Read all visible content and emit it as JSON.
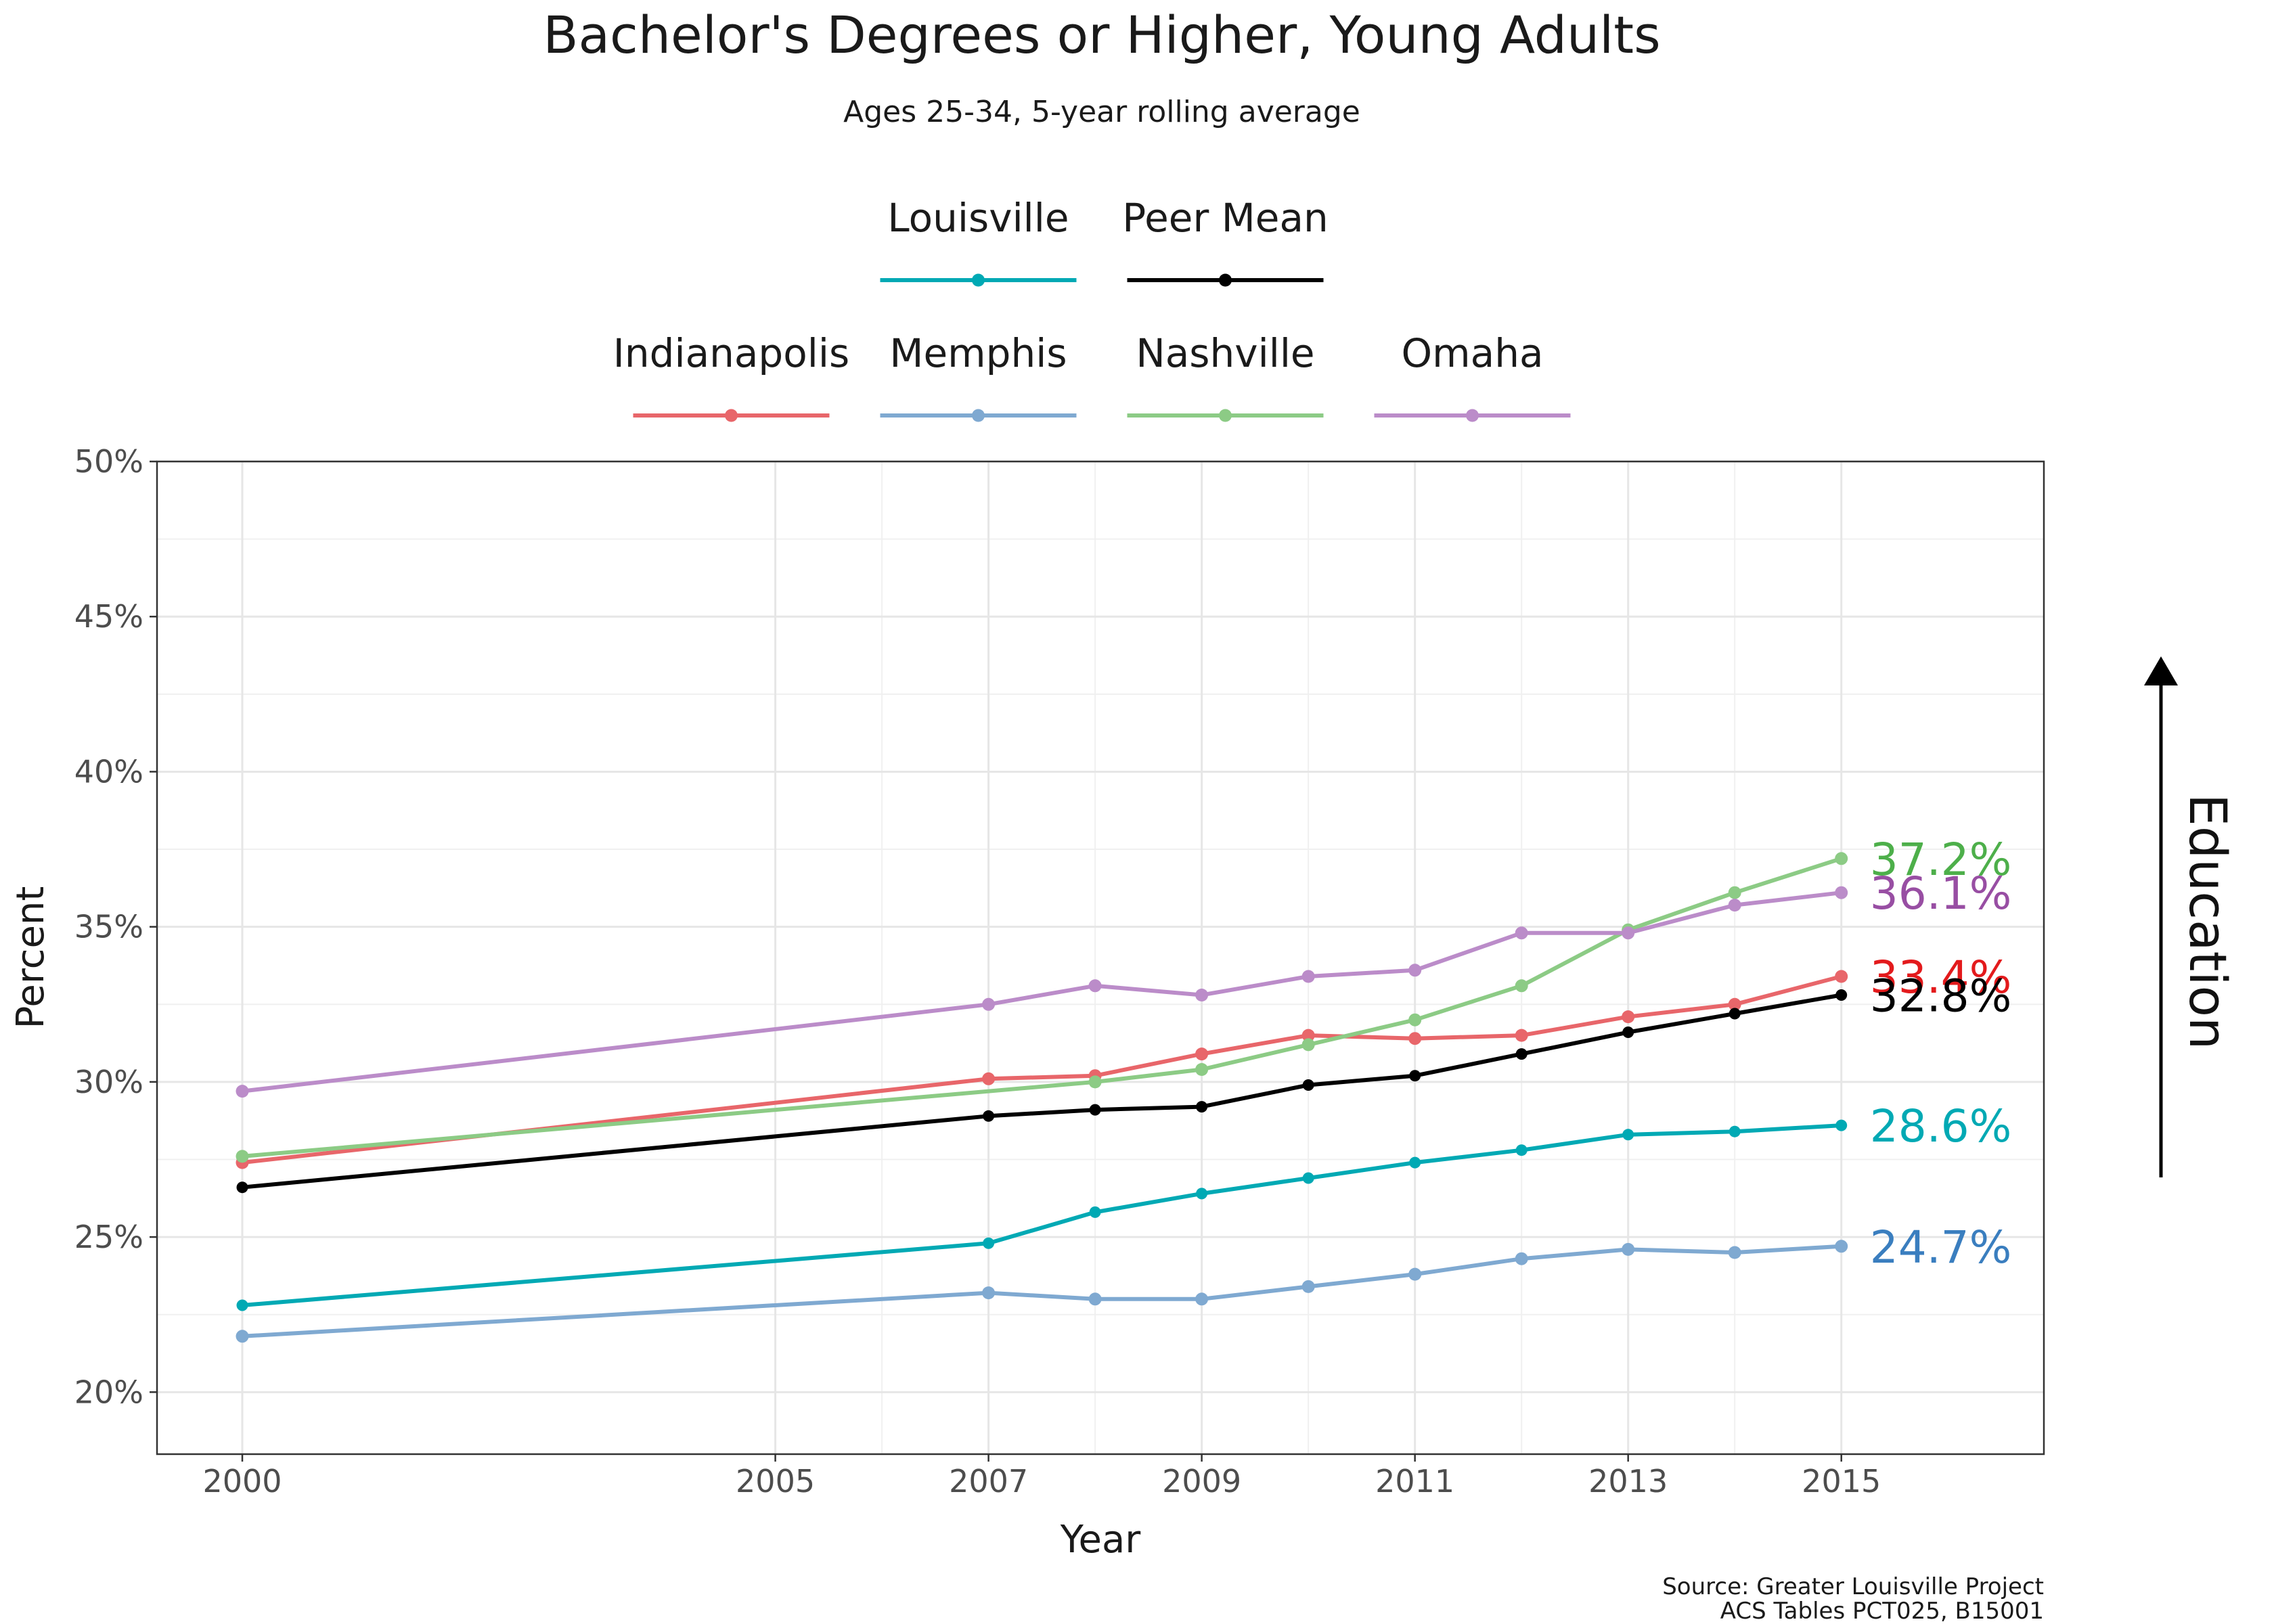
{
  "chart_data": {
    "type": "line",
    "title": "Bachelor's Degrees or Higher, Young Adults",
    "subtitle": "Ages 25-34, 5-year rolling average",
    "xlabel": "Year",
    "ylabel": "Percent",
    "xlim": [
      1999.2,
      2016.9
    ],
    "ylim": [
      18,
      50
    ],
    "x_ticks": [
      2000,
      2005,
      2007,
      2009,
      2011,
      2013,
      2015
    ],
    "x_tick_labels": [
      "2000",
      "2005",
      "2007",
      "2009",
      "2011",
      "2013",
      "2015"
    ],
    "x_minor_gridlines": [
      2006,
      2008,
      2010,
      2012,
      2014
    ],
    "y_ticks": [
      20,
      25,
      30,
      35,
      40,
      45,
      50
    ],
    "y_tick_labels": [
      "20%",
      "25%",
      "30%",
      "35%",
      "40%",
      "45%",
      "50%"
    ],
    "grid": true,
    "legend_placement": "top",
    "legend_rows": [
      [
        "Louisville",
        "Peer Mean"
      ],
      [
        "Indianapolis",
        "Memphis",
        "Nashville",
        "Omaha"
      ]
    ],
    "x": [
      2000,
      2007,
      2008,
      2009,
      2010,
      2011,
      2012,
      2013,
      2014,
      2015
    ],
    "series": [
      {
        "name": "Indianapolis",
        "color": "#e8666a",
        "values": [
          27.4,
          30.1,
          30.2,
          30.9,
          31.5,
          31.4,
          31.5,
          32.1,
          32.5,
          33.4
        ],
        "end_label": "33.4%",
        "label_color": "#e31a1c"
      },
      {
        "name": "Memphis",
        "color": "#7fa9d1",
        "values": [
          21.8,
          23.2,
          23.0,
          23.0,
          23.4,
          23.8,
          24.3,
          24.6,
          24.5,
          24.7
        ],
        "end_label": "24.7%",
        "label_color": "#3a7ebf"
      },
      {
        "name": "Nashville",
        "color": "#8ccb85",
        "values": [
          27.6,
          null,
          30.0,
          30.4,
          31.2,
          32.0,
          33.1,
          34.9,
          36.1,
          37.2
        ],
        "end_label": "37.2%",
        "label_color": "#4daf4a"
      },
      {
        "name": "Omaha",
        "color": "#bb8cc9",
        "values": [
          29.7,
          32.5,
          33.1,
          32.8,
          33.4,
          33.6,
          34.8,
          34.8,
          35.7,
          36.1
        ],
        "end_label": "36.1%",
        "label_color": "#984ea3"
      },
      {
        "name": "Peer Mean",
        "color": "#000000",
        "values": [
          26.6,
          28.9,
          29.1,
          29.2,
          29.9,
          30.2,
          30.9,
          31.6,
          32.2,
          32.8
        ],
        "end_label": "32.8%",
        "label_color": "#000000"
      },
      {
        "name": "Louisville",
        "color": "#00a9b4",
        "values": [
          22.8,
          24.8,
          25.8,
          26.4,
          26.9,
          27.4,
          27.8,
          28.3,
          28.4,
          28.6
        ],
        "end_label": "28.6%",
        "label_color": "#00a9b4"
      }
    ],
    "side_annotation": "Education",
    "caption_lines": [
      "Source: Greater Louisville Project",
      "ACS Tables PCT025, B15001"
    ]
  }
}
